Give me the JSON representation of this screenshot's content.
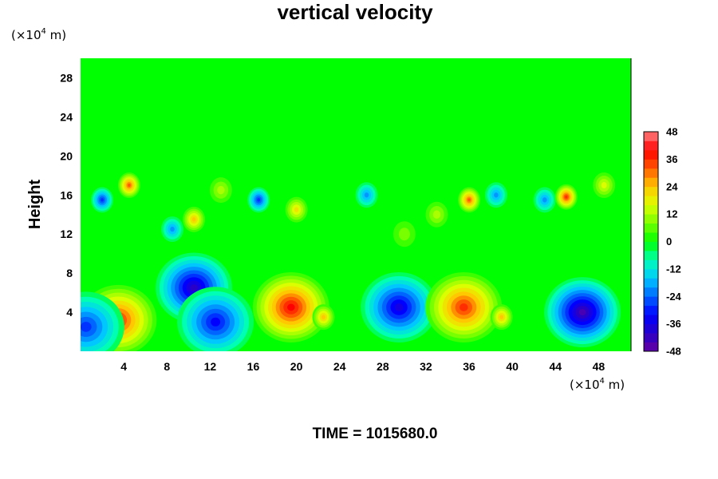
{
  "chart_data": {
    "type": "heatmap",
    "title": "vertical velocity",
    "ylabel": "Height",
    "x_unit_prefix": "(×10",
    "x_unit_exp": "4",
    "x_unit_suffix": " m)",
    "y_unit_prefix": "(×10",
    "y_unit_exp": "4",
    "y_unit_suffix": " m)",
    "footer": "TIME = 1015680.0",
    "xlim": [
      0,
      51
    ],
    "ylim": [
      0,
      30
    ],
    "x_ticks": [
      4,
      8,
      12,
      16,
      20,
      24,
      28,
      32,
      36,
      40,
      44,
      48
    ],
    "y_ticks": [
      4,
      8,
      12,
      16,
      20,
      24,
      28
    ],
    "colorbar": {
      "min": -48,
      "max": 48,
      "step": 4,
      "tick_values": [
        -48,
        -36,
        -24,
        -12,
        0,
        12,
        24,
        36,
        48
      ]
    },
    "features": [
      {
        "x": 3.5,
        "y": 3.2,
        "value": 34
      },
      {
        "x": 10.5,
        "y": 6.5,
        "value": -40
      },
      {
        "x": 12.5,
        "y": 3.0,
        "value": -32
      },
      {
        "x": 19.5,
        "y": 4.5,
        "value": 38
      },
      {
        "x": 22.5,
        "y": 3.5,
        "value": 24
      },
      {
        "x": 29.5,
        "y": 4.5,
        "value": -36
      },
      {
        "x": 35.5,
        "y": 4.5,
        "value": 36
      },
      {
        "x": 39.0,
        "y": 3.5,
        "value": 22
      },
      {
        "x": 46.5,
        "y": 4.0,
        "value": -44
      },
      {
        "x": 0.5,
        "y": 2.5,
        "value": -28
      },
      {
        "x": 4.5,
        "y": 17.0,
        "value": 30
      },
      {
        "x": 2.0,
        "y": 15.5,
        "value": -26
      },
      {
        "x": 16.5,
        "y": 15.5,
        "value": -26
      },
      {
        "x": 10.5,
        "y": 13.5,
        "value": 22
      },
      {
        "x": 8.5,
        "y": 12.5,
        "value": -20
      },
      {
        "x": 20.0,
        "y": 14.5,
        "value": 18
      },
      {
        "x": 26.5,
        "y": 16.0,
        "value": -18
      },
      {
        "x": 36.0,
        "y": 15.5,
        "value": 30
      },
      {
        "x": 38.5,
        "y": 16.0,
        "value": -20
      },
      {
        "x": 43.0,
        "y": 15.5,
        "value": -18
      },
      {
        "x": 45.0,
        "y": 15.8,
        "value": 34
      },
      {
        "x": 48.5,
        "y": 17.0,
        "value": 14
      },
      {
        "x": 33.0,
        "y": 14.0,
        "value": 10
      },
      {
        "x": 13.0,
        "y": 16.5,
        "value": 10
      },
      {
        "x": 30.0,
        "y": 12.0,
        "value": 8
      }
    ]
  }
}
